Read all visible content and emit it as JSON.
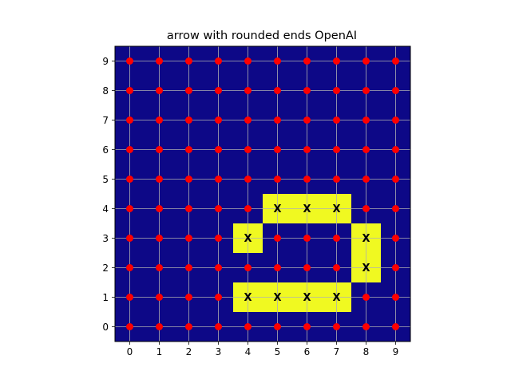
{
  "chart_data": {
    "type": "heatmap",
    "title": "arrow with rounded ends OpenAI",
    "xlabel": "",
    "ylabel": "",
    "xlim": [
      -0.5,
      9.5
    ],
    "ylim": [
      -0.5,
      9.5
    ],
    "x_ticks": [
      "0",
      "1",
      "2",
      "3",
      "4",
      "5",
      "6",
      "7",
      "8",
      "9"
    ],
    "y_ticks": [
      "0",
      "1",
      "2",
      "3",
      "4",
      "5",
      "6",
      "7",
      "8",
      "9"
    ],
    "grid": true,
    "colors": {
      "background_cell": "#0d0887",
      "highlight_cell": "#f0f921",
      "point": "#ff0000",
      "grid": "#b0b0b0"
    },
    "highlighted_cells": [
      {
        "x": 4,
        "y": 1,
        "label": "X"
      },
      {
        "x": 5,
        "y": 1,
        "label": "X"
      },
      {
        "x": 6,
        "y": 1,
        "label": "X"
      },
      {
        "x": 7,
        "y": 1,
        "label": "X"
      },
      {
        "x": 8,
        "y": 2,
        "label": "X"
      },
      {
        "x": 8,
        "y": 3,
        "label": "X"
      },
      {
        "x": 4,
        "y": 3,
        "label": "X"
      },
      {
        "x": 5,
        "y": 4,
        "label": "X"
      },
      {
        "x": 6,
        "y": 4,
        "label": "X"
      },
      {
        "x": 7,
        "y": 4,
        "label": "X"
      }
    ],
    "points": "all integer grid points (0-9, 0-9) marked with red dots where not highlighted"
  }
}
